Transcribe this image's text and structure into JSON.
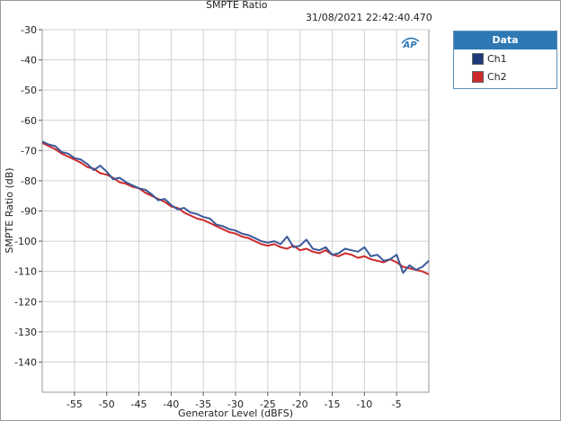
{
  "header": {
    "title": "SMPTE Ratio",
    "timestamp": "31/08/2021 22:42:40.470"
  },
  "legend": {
    "title": "Data",
    "items": [
      {
        "label": "Ch1",
        "color": "#1f3a7a"
      },
      {
        "label": "Ch2",
        "color": "#cc2a2a"
      }
    ]
  },
  "logo_text": "AP",
  "chart_data": {
    "type": "line",
    "xlabel": "Generator Level (dBFS)",
    "ylabel": "SMPTE Ratio (dB)",
    "xlim": [
      -60,
      0
    ],
    "ylim": [
      -150,
      -30
    ],
    "xticks": [
      -55,
      -50,
      -45,
      -40,
      -35,
      -30,
      -25,
      -20,
      -15,
      -10,
      -5
    ],
    "yticks": [
      -30,
      -40,
      -50,
      -60,
      -70,
      -80,
      -90,
      -100,
      -110,
      -120,
      -130,
      -140
    ],
    "grid": true,
    "legend_position": "right",
    "series": [
      {
        "name": "Ch1",
        "color": "#3a5a9a",
        "x": [
          -60,
          -59,
          -58,
          -57,
          -56,
          -55,
          -54,
          -53,
          -52,
          -51,
          -50,
          -49,
          -48,
          -47,
          -46,
          -45,
          -44,
          -43,
          -42,
          -41,
          -40,
          -39,
          -38,
          -37,
          -36,
          -35,
          -34,
          -33,
          -32,
          -31,
          -30,
          -29,
          -28,
          -27,
          -26,
          -25,
          -24,
          -23,
          -22,
          -21,
          -20,
          -19,
          -18,
          -17,
          -16,
          -15,
          -14,
          -13,
          -12,
          -11,
          -10,
          -9,
          -8,
          -7,
          -6,
          -5,
          -4,
          -3,
          -2,
          -1,
          0
        ],
        "y": [
          -67.0,
          -68.0,
          -68.5,
          -70.5,
          -71.0,
          -72.5,
          -73.0,
          -74.5,
          -76.5,
          -75.0,
          -77.0,
          -79.5,
          -79.0,
          -80.5,
          -81.5,
          -82.5,
          -83.0,
          -84.5,
          -86.5,
          -86.0,
          -88.0,
          -89.5,
          -89.0,
          -90.5,
          -91.0,
          -92.0,
          -92.5,
          -94.5,
          -95.0,
          -96.0,
          -96.5,
          -97.5,
          -98.0,
          -99.0,
          -100.0,
          -100.5,
          -100.0,
          -101.0,
          -98.5,
          -102.0,
          -101.5,
          -99.5,
          -102.5,
          -103.0,
          -102.0,
          -104.5,
          -104.0,
          -102.5,
          -103.0,
          -103.5,
          -102.0,
          -105.0,
          -104.5,
          -106.5,
          -106.0,
          -104.5,
          -110.5,
          -108.0,
          -109.5,
          -108.5,
          -106.5
        ]
      },
      {
        "name": "Ch2",
        "color": "#cc2a2a",
        "x": [
          -60,
          -59,
          -58,
          -57,
          -56,
          -55,
          -54,
          -53,
          -52,
          -51,
          -50,
          -49,
          -48,
          -47,
          -46,
          -45,
          -44,
          -43,
          -42,
          -41,
          -40,
          -39,
          -38,
          -37,
          -36,
          -35,
          -34,
          -33,
          -32,
          -31,
          -30,
          -29,
          -28,
          -27,
          -26,
          -25,
          -24,
          -23,
          -22,
          -21,
          -20,
          -19,
          -18,
          -17,
          -16,
          -15,
          -14,
          -13,
          -12,
          -11,
          -10,
          -9,
          -8,
          -7,
          -6,
          -5,
          -4,
          -3,
          -2,
          -1,
          0
        ],
        "y": [
          -67.5,
          -68.5,
          -69.5,
          -71.0,
          -72.0,
          -73.0,
          -74.0,
          -75.5,
          -76.0,
          -77.5,
          -78.0,
          -79.0,
          -80.5,
          -81.0,
          -82.0,
          -82.5,
          -84.0,
          -85.0,
          -86.0,
          -87.0,
          -88.5,
          -89.0,
          -90.5,
          -91.5,
          -92.5,
          -93.0,
          -94.0,
          -95.0,
          -96.0,
          -97.0,
          -97.5,
          -98.5,
          -99.0,
          -100.0,
          -101.0,
          -101.5,
          -101.0,
          -102.0,
          -102.5,
          -101.5,
          -103.0,
          -102.5,
          -103.5,
          -104.0,
          -103.0,
          -104.5,
          -105.0,
          -104.0,
          -104.5,
          -105.5,
          -105.0,
          -106.0,
          -106.5,
          -107.0,
          -106.0,
          -107.0,
          -108.5,
          -109.0,
          -109.5,
          -110.0,
          -111.0
        ]
      }
    ]
  }
}
